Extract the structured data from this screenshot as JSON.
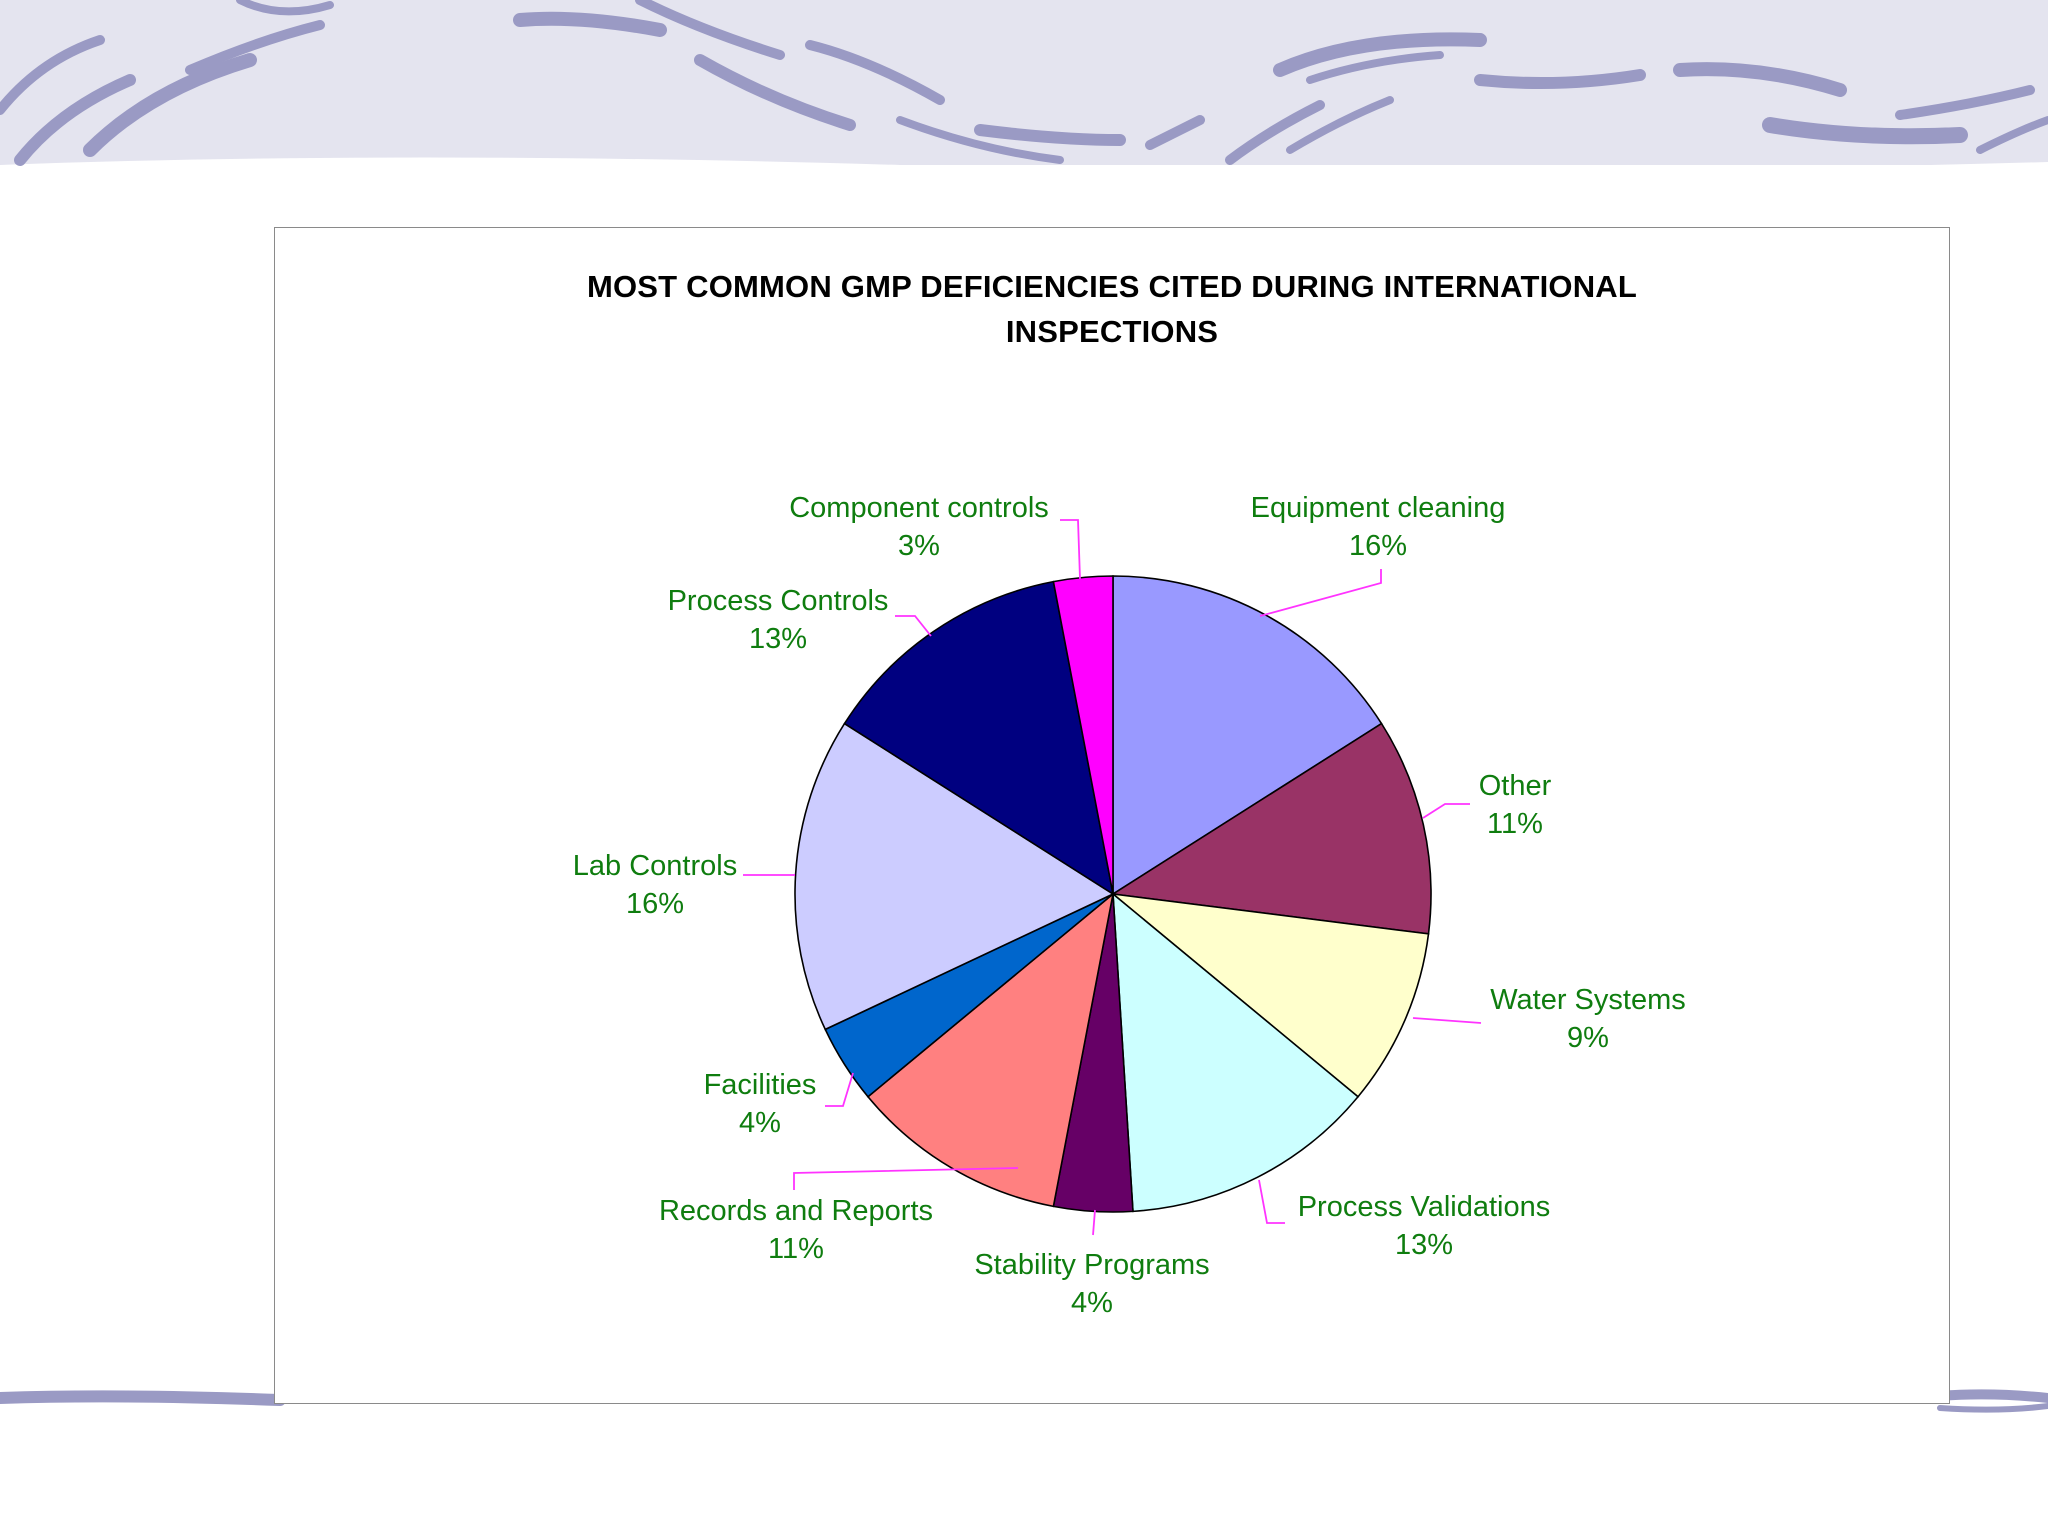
{
  "colors": {
    "background": "#ffffff",
    "band": "#e4e4ef",
    "stroke": "#9a9ac4",
    "label_text": "#0f7d0f",
    "leader": "#ff33ff"
  },
  "chart_data": {
    "type": "pie",
    "title": "MOST COMMON GMP DEFICIENCIES CITED DURING INTERNATIONAL INSPECTIONS",
    "title_lines": [
      "MOST COMMON GMP DEFICIENCIES CITED DURING INTERNATIONAL",
      "INSPECTIONS"
    ],
    "slices": [
      {
        "label": "Equipment cleaning",
        "value": 16,
        "pct_label": "16%",
        "color": "#9999ff"
      },
      {
        "label": "Other",
        "value": 11,
        "pct_label": "11%",
        "color": "#993366"
      },
      {
        "label": "Water Systems",
        "value": 9,
        "pct_label": "9%",
        "color": "#ffffcc"
      },
      {
        "label": "Process Validations",
        "value": 13,
        "pct_label": "13%",
        "color": "#ccffff"
      },
      {
        "label": "Stability Programs",
        "value": 4,
        "pct_label": "4%",
        "color": "#660066"
      },
      {
        "label": "Records and Reports",
        "value": 11,
        "pct_label": "11%",
        "color": "#ff8080"
      },
      {
        "label": "Facilities",
        "value": 4,
        "pct_label": "4%",
        "color": "#0066cc"
      },
      {
        "label": "Lab Controls",
        "value": 16,
        "pct_label": "16%",
        "color": "#ccccff"
      },
      {
        "label": "Process Controls",
        "value": 13,
        "pct_label": "13%",
        "color": "#000080"
      },
      {
        "label": "Component controls",
        "value": 3,
        "pct_label": "3%",
        "color": "#ff00ff"
      }
    ],
    "legend": "none",
    "start": "12 o'clock, clockwise"
  }
}
